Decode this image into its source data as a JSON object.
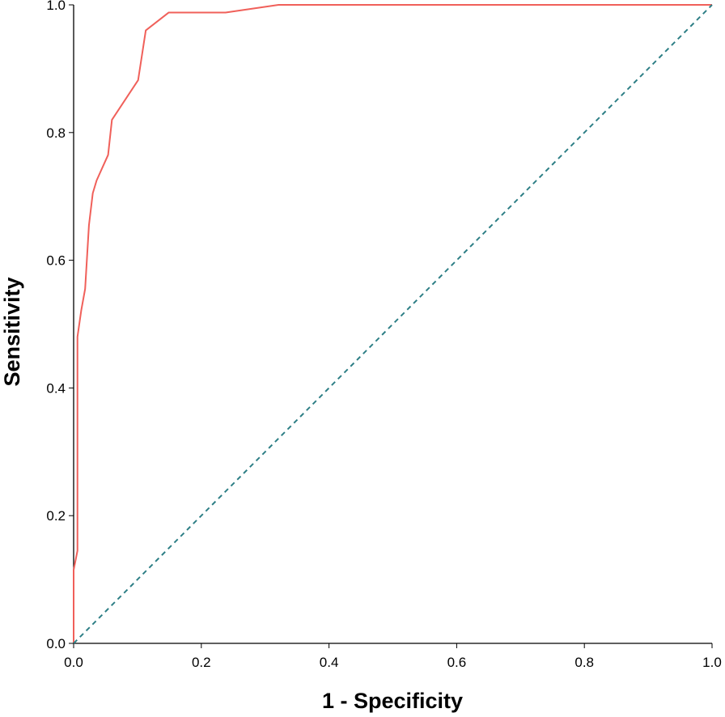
{
  "chart_data": {
    "type": "line",
    "title": "",
    "xlabel": "1 - Specificity",
    "ylabel": "Sensitivity",
    "xlim": [
      0,
      1
    ],
    "ylim": [
      0,
      1
    ],
    "x_ticks": [
      "0.0",
      "0.2",
      "0.4",
      "0.6",
      "0.8",
      "1.0"
    ],
    "y_ticks": [
      "0.0",
      "0.2",
      "0.4",
      "0.6",
      "0.8",
      "1.0"
    ],
    "grid": false,
    "legend": "none",
    "series": [
      {
        "color": "#f0605a",
        "style": "solid",
        "x": [
          0.0,
          0.0,
          0.006,
          0.006,
          0.012,
          0.018,
          0.024,
          0.03,
          0.036,
          0.054,
          0.06,
          0.101,
          0.113,
          0.149,
          0.238,
          0.321,
          1.0
        ],
        "y": [
          0.0,
          0.115,
          0.145,
          0.48,
          0.522,
          0.555,
          0.655,
          0.705,
          0.725,
          0.765,
          0.82,
          0.882,
          0.96,
          0.988,
          0.988,
          1.0,
          1.0
        ]
      },
      {
        "color": "#2e7f86",
        "style": "dashed",
        "x": [
          0,
          1
        ],
        "y": [
          0,
          1
        ]
      }
    ]
  }
}
